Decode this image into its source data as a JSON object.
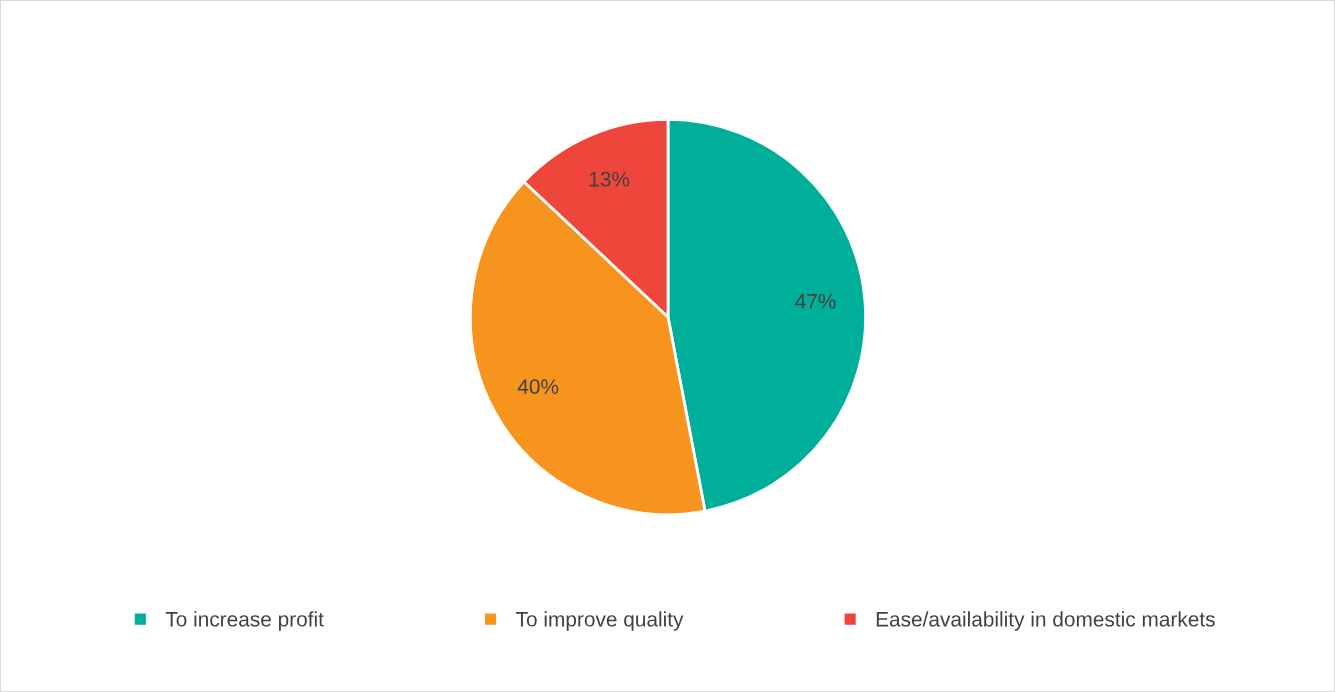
{
  "chart_data": {
    "type": "pie",
    "categories": [
      "To increase profit",
      "To improve quality",
      "Ease/availability in domestic markets"
    ],
    "values": [
      47,
      40,
      13
    ],
    "colors": [
      "#00af9a",
      "#f7941e",
      "#ef463b"
    ],
    "value_labels": [
      "47%",
      "40%",
      "13%"
    ],
    "legend": "bottom"
  }
}
